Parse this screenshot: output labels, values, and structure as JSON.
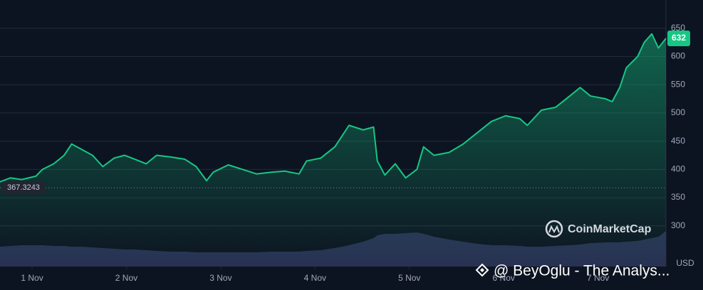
{
  "chart_data": {
    "type": "line",
    "x": [
      0.66,
      0.77,
      0.89,
      1.04,
      1.11,
      1.23,
      1.34,
      1.42,
      1.53,
      1.64,
      1.75,
      1.87,
      1.98,
      2.09,
      2.21,
      2.32,
      2.47,
      2.62,
      2.74,
      2.85,
      2.92,
      3.08,
      3.23,
      3.38,
      3.53,
      3.68,
      3.83,
      3.91,
      4.06,
      4.21,
      4.36,
      4.51,
      4.62,
      4.66,
      4.74,
      4.85,
      4.96,
      5.08,
      5.15,
      5.26,
      5.42,
      5.57,
      5.72,
      5.87,
      6.02,
      6.17,
      6.25,
      6.4,
      6.55,
      6.7,
      6.81,
      6.92,
      7.08,
      7.15,
      7.23,
      7.3,
      7.42,
      7.49,
      7.57,
      7.64,
      7.72
    ],
    "series": [
      {
        "color": "#16c784",
        "values": [
          378,
          385,
          382,
          388,
          400,
          410,
          425,
          445,
          435,
          425,
          405,
          420,
          425,
          418,
          410,
          425,
          422,
          418,
          405,
          380,
          395,
          408,
          400,
          392,
          395,
          397,
          392,
          415,
          420,
          440,
          478,
          470,
          475,
          415,
          390,
          410,
          385,
          400,
          440,
          425,
          430,
          445,
          465,
          485,
          495,
          490,
          478,
          505,
          510,
          530,
          545,
          530,
          525,
          520,
          545,
          580,
          600,
          625,
          640,
          615,
          632
        ]
      }
    ],
    "volume": {
      "color": "#2b3458",
      "values": [
        28,
        29,
        30,
        30,
        30,
        29,
        29,
        28,
        28,
        27,
        26,
        25,
        24,
        24,
        23,
        22,
        21,
        21,
        20,
        20,
        20,
        20,
        20,
        20,
        21,
        21,
        21,
        22,
        23,
        26,
        30,
        35,
        40,
        44,
        46,
        46,
        47,
        48,
        46,
        42,
        38,
        35,
        32,
        30,
        30,
        29,
        28,
        28,
        29,
        30,
        31,
        33,
        34,
        34,
        34,
        35,
        36,
        38,
        40,
        42,
        50
      ],
      "lim": [
        0,
        100
      ]
    },
    "xlim": [
      0.66,
      7.72
    ],
    "xticks": [
      {
        "value": 1,
        "label": "1 Nov"
      },
      {
        "value": 2,
        "label": "2 Nov"
      },
      {
        "value": 3,
        "label": "3 Nov"
      },
      {
        "value": 4,
        "label": "4 Nov"
      },
      {
        "value": 5,
        "label": "5 Nov"
      },
      {
        "value": 6,
        "label": "6 Nov"
      },
      {
        "value": 7,
        "label": "7 Nov"
      }
    ],
    "ylim": [
      228,
      700
    ],
    "yticks": [
      300,
      350,
      400,
      450,
      500,
      550,
      600,
      650
    ],
    "grid": true,
    "y_unit": "USD",
    "reference_line": {
      "value": 367.3243,
      "label": "367.3243"
    },
    "price_badge": "632",
    "brand": "CoinMarketCap",
    "watermark": "@ BeyOglu - The Analys..."
  }
}
